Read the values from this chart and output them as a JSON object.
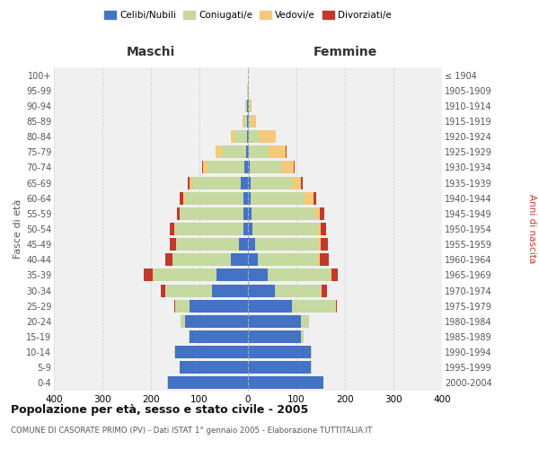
{
  "age_groups": [
    "0-4",
    "5-9",
    "10-14",
    "15-19",
    "20-24",
    "25-29",
    "30-34",
    "35-39",
    "40-44",
    "45-49",
    "50-54",
    "55-59",
    "60-64",
    "65-69",
    "70-74",
    "75-79",
    "80-84",
    "85-89",
    "90-94",
    "95-99",
    "100+"
  ],
  "birth_years": [
    "2000-2004",
    "1995-1999",
    "1990-1994",
    "1985-1989",
    "1980-1984",
    "1975-1979",
    "1970-1974",
    "1965-1969",
    "1960-1964",
    "1955-1959",
    "1950-1954",
    "1945-1949",
    "1940-1944",
    "1935-1939",
    "1930-1934",
    "1925-1929",
    "1920-1924",
    "1915-1919",
    "1910-1914",
    "1905-1909",
    "≤ 1904"
  ],
  "maschi": {
    "celibi": [
      165,
      140,
      150,
      120,
      130,
      120,
      75,
      65,
      35,
      18,
      10,
      10,
      10,
      15,
      8,
      4,
      2,
      1,
      1,
      0,
      0
    ],
    "coniugati": [
      1,
      1,
      1,
      2,
      8,
      30,
      95,
      130,
      120,
      130,
      140,
      130,
      120,
      100,
      75,
      50,
      25,
      8,
      4,
      1,
      0
    ],
    "vedovi": [
      0,
      0,
      0,
      0,
      0,
      0,
      0,
      1,
      1,
      1,
      1,
      1,
      3,
      5,
      10,
      12,
      8,
      2,
      1,
      0,
      0
    ],
    "divorziati": [
      0,
      0,
      0,
      0,
      1,
      2,
      10,
      18,
      15,
      12,
      10,
      5,
      8,
      5,
      2,
      1,
      0,
      0,
      0,
      0,
      0
    ]
  },
  "femmine": {
    "nubili": [
      155,
      130,
      130,
      110,
      110,
      90,
      55,
      40,
      20,
      15,
      10,
      8,
      5,
      5,
      4,
      2,
      2,
      1,
      1,
      0,
      0
    ],
    "coniugate": [
      1,
      1,
      2,
      5,
      15,
      90,
      95,
      130,
      125,
      130,
      135,
      130,
      110,
      85,
      65,
      40,
      20,
      4,
      2,
      0,
      0
    ],
    "vedove": [
      0,
      0,
      0,
      0,
      0,
      1,
      1,
      3,
      3,
      5,
      5,
      10,
      20,
      20,
      25,
      35,
      35,
      12,
      5,
      1,
      0
    ],
    "divorziate": [
      0,
      0,
      0,
      0,
      1,
      2,
      12,
      12,
      18,
      15,
      12,
      10,
      5,
      3,
      2,
      2,
      1,
      0,
      0,
      0,
      0
    ]
  },
  "colors": {
    "celibi_nubili": "#4472c4",
    "coniugati": "#c5d9a0",
    "vedovi": "#f5c97a",
    "divorziati": "#c0392b"
  },
  "title": "Popolazione per età, sesso e stato civile - 2005",
  "subtitle": "COMUNE DI CASORATE PRIMO (PV) - Dati ISTAT 1° gennaio 2005 - Elaborazione TUTTITALIA.IT",
  "xlabel_left": "Maschi",
  "xlabel_right": "Femmine",
  "ylabel_left": "Fasce di età",
  "ylabel_right": "Anni di nascita",
  "xlim": 400,
  "bg_color": "#ffffff",
  "grid_color": "#cccccc",
  "legend_labels": [
    "Celibi/Nubili",
    "Coniugati/e",
    "Vedovi/e",
    "Divorziati/e"
  ]
}
